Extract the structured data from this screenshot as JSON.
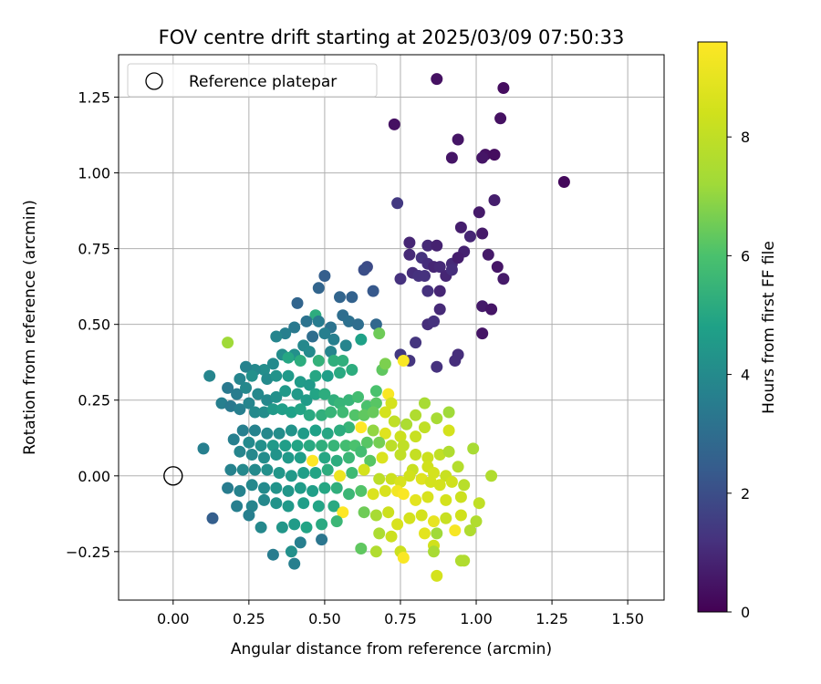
{
  "chart_data": {
    "type": "scatter",
    "title": "FOV centre drift starting at 2025/03/09 07:50:33",
    "xlabel": "Angular distance from reference (arcmin)",
    "ylabel": "Rotation from reference (arcmin)",
    "xlim": [
      -0.18,
      1.62
    ],
    "ylim": [
      -0.41,
      1.39
    ],
    "xticks": [
      0.0,
      0.25,
      0.5,
      0.75,
      1.0,
      1.25,
      1.5
    ],
    "xtick_labels": [
      "0.00",
      "0.25",
      "0.50",
      "0.75",
      "1.00",
      "1.25",
      "1.50"
    ],
    "yticks": [
      -0.25,
      0.0,
      0.25,
      0.5,
      0.75,
      1.0,
      1.25
    ],
    "ytick_labels": [
      "−0.25",
      "0.00",
      "0.25",
      "0.50",
      "0.75",
      "1.00",
      "1.25"
    ],
    "grid": true,
    "colormap": "viridis",
    "colorbar": {
      "label": "Hours from first FF file",
      "range": [
        0,
        9.6
      ],
      "ticks": [
        0,
        2,
        4,
        6,
        8
      ],
      "tick_labels": [
        "0",
        "2",
        "4",
        "6",
        "8"
      ]
    },
    "legend": {
      "position": "top-left",
      "entries": [
        {
          "label": "Reference platepar",
          "marker": "open-circle",
          "color": "#000000"
        }
      ]
    },
    "reference_point": {
      "x": 0.0,
      "y": 0.0,
      "label": "Reference platepar"
    },
    "points": [
      [
        0.87,
        1.31,
        0.4
      ],
      [
        1.09,
        1.28,
        0.3
      ],
      [
        1.08,
        1.18,
        0.4
      ],
      [
        0.73,
        1.16,
        0.4
      ],
      [
        0.94,
        1.11,
        0.5
      ],
      [
        0.92,
        1.05,
        0.5
      ],
      [
        1.03,
        1.06,
        0.4
      ],
      [
        1.02,
        1.05,
        0.5
      ],
      [
        1.06,
        1.06,
        0.3
      ],
      [
        1.29,
        0.97,
        0.2
      ],
      [
        1.06,
        0.91,
        0.7
      ],
      [
        0.74,
        0.9,
        1.4
      ],
      [
        1.01,
        0.87,
        0.6
      ],
      [
        0.95,
        0.82,
        0.7
      ],
      [
        0.98,
        0.79,
        0.9
      ],
      [
        1.02,
        0.8,
        0.6
      ],
      [
        0.78,
        0.77,
        0.9
      ],
      [
        0.84,
        0.76,
        1.0
      ],
      [
        0.87,
        0.76,
        0.8
      ],
      [
        0.96,
        0.74,
        0.8
      ],
      [
        0.82,
        0.72,
        1.2
      ],
      [
        0.78,
        0.73,
        1.0
      ],
      [
        0.84,
        0.7,
        1.1
      ],
      [
        0.86,
        0.69,
        0.9
      ],
      [
        0.88,
        0.69,
        1.0
      ],
      [
        0.92,
        0.7,
        1.0
      ],
      [
        0.94,
        0.72,
        0.7
      ],
      [
        1.04,
        0.73,
        0.6
      ],
      [
        1.07,
        0.69,
        0.5
      ],
      [
        0.9,
        0.66,
        0.9
      ],
      [
        0.92,
        0.68,
        1.1
      ],
      [
        0.79,
        0.67,
        1.1
      ],
      [
        0.81,
        0.66,
        1.2
      ],
      [
        0.83,
        0.66,
        1.2
      ],
      [
        0.75,
        0.65,
        1.2
      ],
      [
        1.09,
        0.65,
        0.6
      ],
      [
        0.64,
        0.69,
        1.9
      ],
      [
        0.63,
        0.68,
        2.0
      ],
      [
        0.84,
        0.61,
        1.2
      ],
      [
        0.88,
        0.61,
        0.9
      ],
      [
        0.66,
        0.61,
        2.3
      ],
      [
        0.5,
        0.66,
        2.5
      ],
      [
        0.48,
        0.62,
        2.7
      ],
      [
        0.55,
        0.59,
        2.7
      ],
      [
        0.59,
        0.59,
        2.6
      ],
      [
        0.41,
        0.57,
        2.7
      ],
      [
        1.02,
        0.56,
        0.6
      ],
      [
        1.05,
        0.55,
        0.5
      ],
      [
        0.88,
        0.55,
        1.0
      ],
      [
        0.84,
        0.5,
        1.1
      ],
      [
        0.86,
        0.51,
        1.2
      ],
      [
        0.8,
        0.44,
        1.3
      ],
      [
        0.75,
        0.4,
        1.4
      ],
      [
        0.78,
        0.38,
        1.3
      ],
      [
        0.94,
        0.4,
        1.1
      ],
      [
        0.93,
        0.38,
        1.1
      ],
      [
        0.87,
        0.36,
        1.2
      ],
      [
        1.02,
        0.47,
        0.5
      ],
      [
        0.67,
        0.5,
        2.8
      ],
      [
        0.56,
        0.53,
        3.0
      ],
      [
        0.58,
        0.51,
        3.1
      ],
      [
        0.61,
        0.5,
        3.0
      ],
      [
        0.52,
        0.49,
        3.2
      ],
      [
        0.47,
        0.53,
        5.2
      ],
      [
        0.48,
        0.51,
        3.5
      ],
      [
        0.44,
        0.51,
        3.2
      ],
      [
        0.4,
        0.49,
        3.4
      ],
      [
        0.37,
        0.47,
        3.6
      ],
      [
        0.46,
        0.46,
        3.0
      ],
      [
        0.5,
        0.47,
        3.6
      ],
      [
        0.53,
        0.45,
        3.6
      ],
      [
        0.62,
        0.45,
        4.8
      ],
      [
        0.34,
        0.46,
        3.8
      ],
      [
        0.43,
        0.43,
        3.9
      ],
      [
        0.57,
        0.43,
        3.8
      ],
      [
        0.68,
        0.47,
        6.5
      ],
      [
        0.45,
        0.41,
        4.0
      ],
      [
        0.52,
        0.41,
        3.8
      ],
      [
        0.4,
        0.4,
        4.2
      ],
      [
        0.36,
        0.4,
        4.1
      ],
      [
        0.33,
        0.37,
        4.0
      ],
      [
        0.3,
        0.35,
        4.1
      ],
      [
        0.27,
        0.35,
        3.9
      ],
      [
        0.24,
        0.36,
        3.7
      ],
      [
        0.22,
        0.32,
        3.8
      ],
      [
        0.26,
        0.33,
        4.2
      ],
      [
        0.31,
        0.32,
        4.0
      ],
      [
        0.34,
        0.33,
        4.3
      ],
      [
        0.38,
        0.33,
        4.5
      ],
      [
        0.42,
        0.31,
        4.6
      ],
      [
        0.45,
        0.3,
        4.5
      ],
      [
        0.47,
        0.33,
        5.0
      ],
      [
        0.51,
        0.33,
        4.7
      ],
      [
        0.55,
        0.34,
        5.1
      ],
      [
        0.56,
        0.38,
        5.3
      ],
      [
        0.53,
        0.38,
        5.3
      ],
      [
        0.48,
        0.38,
        5.4
      ],
      [
        0.42,
        0.38,
        5.2
      ],
      [
        0.38,
        0.39,
        5.0
      ],
      [
        0.59,
        0.35,
        5.2
      ],
      [
        0.69,
        0.35,
        6.3
      ],
      [
        0.7,
        0.37,
        6.7
      ],
      [
        0.76,
        0.38,
        9.5
      ],
      [
        0.67,
        0.28,
        6.0
      ],
      [
        0.71,
        0.27,
        9.5
      ],
      [
        0.72,
        0.24,
        8.5
      ],
      [
        0.18,
        0.44,
        7.2
      ],
      [
        0.12,
        0.33,
        3.8
      ],
      [
        0.16,
        0.24,
        3.6
      ],
      [
        0.19,
        0.23,
        3.4
      ],
      [
        0.22,
        0.22,
        3.6
      ],
      [
        0.25,
        0.24,
        3.8
      ],
      [
        0.28,
        0.27,
        3.9
      ],
      [
        0.31,
        0.25,
        3.9
      ],
      [
        0.34,
        0.26,
        4.2
      ],
      [
        0.37,
        0.28,
        4.5
      ],
      [
        0.41,
        0.27,
        4.5
      ],
      [
        0.44,
        0.25,
        4.6
      ],
      [
        0.47,
        0.27,
        4.9
      ],
      [
        0.5,
        0.27,
        5.2
      ],
      [
        0.53,
        0.25,
        5.3
      ],
      [
        0.55,
        0.24,
        5.5
      ],
      [
        0.58,
        0.25,
        5.5
      ],
      [
        0.61,
        0.26,
        5.8
      ],
      [
        0.64,
        0.23,
        6.0
      ],
      [
        0.67,
        0.24,
        6.2
      ],
      [
        0.21,
        0.27,
        3.5
      ],
      [
        0.18,
        0.29,
        3.4
      ],
      [
        0.24,
        0.29,
        3.9
      ],
      [
        0.27,
        0.21,
        4.0
      ],
      [
        0.3,
        0.21,
        4.1
      ],
      [
        0.33,
        0.22,
        4.5
      ],
      [
        0.36,
        0.22,
        4.7
      ],
      [
        0.39,
        0.21,
        4.8
      ],
      [
        0.42,
        0.22,
        4.9
      ],
      [
        0.45,
        0.2,
        5.1
      ],
      [
        0.49,
        0.2,
        5.3
      ],
      [
        0.52,
        0.21,
        5.5
      ],
      [
        0.56,
        0.21,
        5.7
      ],
      [
        0.6,
        0.2,
        6.1
      ],
      [
        0.63,
        0.2,
        6.3
      ],
      [
        0.66,
        0.21,
        6.4
      ],
      [
        0.7,
        0.21,
        8.5
      ],
      [
        0.73,
        0.18,
        8.0
      ],
      [
        0.77,
        0.17,
        7.5
      ],
      [
        0.8,
        0.2,
        7.6
      ],
      [
        0.83,
        0.24,
        7.4
      ],
      [
        0.87,
        0.19,
        7.4
      ],
      [
        0.91,
        0.21,
        7.2
      ],
      [
        0.91,
        0.15,
        8.5
      ],
      [
        0.83,
        0.16,
        8.0
      ],
      [
        0.8,
        0.13,
        8.2
      ],
      [
        0.75,
        0.13,
        8.3
      ],
      [
        0.7,
        0.14,
        8.8
      ],
      [
        0.66,
        0.15,
        7.0
      ],
      [
        0.62,
        0.16,
        9.6
      ],
      [
        0.58,
        0.16,
        5.5
      ],
      [
        0.55,
        0.15,
        5.2
      ],
      [
        0.51,
        0.14,
        5.0
      ],
      [
        0.47,
        0.15,
        4.8
      ],
      [
        0.43,
        0.14,
        4.6
      ],
      [
        0.39,
        0.15,
        4.3
      ],
      [
        0.35,
        0.14,
        4.1
      ],
      [
        0.31,
        0.14,
        3.9
      ],
      [
        0.27,
        0.15,
        3.7
      ],
      [
        0.23,
        0.15,
        3.6
      ],
      [
        0.2,
        0.12,
        3.6
      ],
      [
        0.25,
        0.11,
        4.0
      ],
      [
        0.29,
        0.1,
        4.2
      ],
      [
        0.33,
        0.1,
        4.5
      ],
      [
        0.37,
        0.1,
        4.7
      ],
      [
        0.41,
        0.1,
        4.9
      ],
      [
        0.45,
        0.1,
        5.1
      ],
      [
        0.49,
        0.1,
        5.3
      ],
      [
        0.53,
        0.1,
        5.5
      ],
      [
        0.57,
        0.1,
        5.8
      ],
      [
        0.6,
        0.1,
        6.0
      ],
      [
        0.64,
        0.11,
        6.2
      ],
      [
        0.68,
        0.11,
        6.6
      ],
      [
        0.72,
        0.1,
        7.9
      ],
      [
        0.76,
        0.1,
        8.0
      ],
      [
        0.8,
        0.07,
        8.1
      ],
      [
        0.84,
        0.06,
        8.3
      ],
      [
        0.88,
        0.07,
        8.0
      ],
      [
        0.91,
        0.08,
        7.6
      ],
      [
        0.99,
        0.09,
        7.4
      ],
      [
        0.1,
        0.09,
        3.6
      ],
      [
        0.22,
        0.08,
        3.8
      ],
      [
        0.26,
        0.07,
        3.9
      ],
      [
        0.3,
        0.06,
        4.1
      ],
      [
        0.34,
        0.07,
        4.3
      ],
      [
        0.38,
        0.06,
        4.5
      ],
      [
        0.42,
        0.06,
        4.7
      ],
      [
        0.46,
        0.05,
        9.7
      ],
      [
        0.5,
        0.06,
        5.0
      ],
      [
        0.54,
        0.05,
        5.2
      ],
      [
        0.58,
        0.06,
        5.6
      ],
      [
        0.62,
        0.08,
        5.8
      ],
      [
        0.65,
        0.05,
        6.2
      ],
      [
        0.69,
        0.06,
        8.7
      ],
      [
        0.75,
        0.07,
        8.0
      ],
      [
        0.79,
        0.02,
        8.2
      ],
      [
        0.84,
        0.03,
        8.4
      ],
      [
        0.86,
        0.01,
        8.5
      ],
      [
        0.9,
        0.0,
        8.2
      ],
      [
        0.94,
        0.03,
        7.7
      ],
      [
        1.05,
        0.0,
        7.6
      ],
      [
        0.19,
        0.02,
        3.7
      ],
      [
        0.23,
        0.02,
        3.9
      ],
      [
        0.27,
        0.02,
        4.0
      ],
      [
        0.31,
        0.02,
        4.2
      ],
      [
        0.35,
        0.01,
        4.4
      ],
      [
        0.39,
        0.0,
        4.5
      ],
      [
        0.43,
        0.01,
        4.7
      ],
      [
        0.47,
        0.01,
        4.9
      ],
      [
        0.51,
        0.02,
        5.2
      ],
      [
        0.55,
        0.0,
        9.2
      ],
      [
        0.59,
        0.01,
        5.7
      ],
      [
        0.63,
        0.02,
        8.5
      ],
      [
        0.68,
        -0.01,
        7.9
      ],
      [
        0.72,
        -0.01,
        8.3
      ],
      [
        0.75,
        -0.02,
        8.6
      ],
      [
        0.78,
        0.0,
        8.4
      ],
      [
        0.82,
        -0.01,
        8.8
      ],
      [
        0.85,
        -0.02,
        8.5
      ],
      [
        0.88,
        -0.03,
        8.5
      ],
      [
        0.92,
        -0.02,
        8.4
      ],
      [
        0.96,
        -0.03,
        7.8
      ],
      [
        0.18,
        -0.04,
        3.5
      ],
      [
        0.22,
        -0.05,
        3.7
      ],
      [
        0.26,
        -0.03,
        3.9
      ],
      [
        0.3,
        -0.04,
        4.0
      ],
      [
        0.34,
        -0.04,
        4.3
      ],
      [
        0.38,
        -0.05,
        4.4
      ],
      [
        0.42,
        -0.04,
        4.6
      ],
      [
        0.46,
        -0.05,
        4.7
      ],
      [
        0.5,
        -0.04,
        5.0
      ],
      [
        0.54,
        -0.04,
        5.3
      ],
      [
        0.58,
        -0.06,
        5.6
      ],
      [
        0.62,
        -0.05,
        6.1
      ],
      [
        0.66,
        -0.06,
        8.7
      ],
      [
        0.7,
        -0.05,
        8.6
      ],
      [
        0.74,
        -0.05,
        9.3
      ],
      [
        0.76,
        -0.06,
        9.5
      ],
      [
        0.8,
        -0.08,
        8.9
      ],
      [
        0.84,
        -0.07,
        8.6
      ],
      [
        0.9,
        -0.08,
        8.5
      ],
      [
        0.95,
        -0.07,
        8.3
      ],
      [
        1.01,
        -0.09,
        8.0
      ],
      [
        0.21,
        -0.1,
        3.6
      ],
      [
        0.26,
        -0.1,
        3.8
      ],
      [
        0.3,
        -0.08,
        3.9
      ],
      [
        0.34,
        -0.09,
        4.3
      ],
      [
        0.38,
        -0.1,
        4.5
      ],
      [
        0.43,
        -0.09,
        4.7
      ],
      [
        0.48,
        -0.1,
        4.9
      ],
      [
        0.53,
        -0.1,
        5.1
      ],
      [
        0.56,
        -0.12,
        9.6
      ],
      [
        0.63,
        -0.12,
        6.5
      ],
      [
        0.67,
        -0.13,
        7.4
      ],
      [
        0.71,
        -0.12,
        8.3
      ],
      [
        0.74,
        -0.16,
        8.6
      ],
      [
        0.78,
        -0.14,
        8.5
      ],
      [
        0.82,
        -0.13,
        8.5
      ],
      [
        0.86,
        -0.15,
        9.0
      ],
      [
        0.9,
        -0.14,
        8.2
      ],
      [
        0.95,
        -0.13,
        8.4
      ],
      [
        1.0,
        -0.15,
        7.6
      ],
      [
        0.25,
        -0.13,
        3.6
      ],
      [
        0.13,
        -0.14,
        2.5
      ],
      [
        0.29,
        -0.17,
        3.9
      ],
      [
        0.36,
        -0.17,
        4.4
      ],
      [
        0.4,
        -0.16,
        4.6
      ],
      [
        0.44,
        -0.17,
        4.9
      ],
      [
        0.49,
        -0.16,
        5.1
      ],
      [
        0.54,
        -0.15,
        5.6
      ],
      [
        0.68,
        -0.19,
        7.5
      ],
      [
        0.72,
        -0.2,
        8.3
      ],
      [
        0.83,
        -0.19,
        8.9
      ],
      [
        0.87,
        -0.19,
        7.2
      ],
      [
        0.93,
        -0.18,
        9.4
      ],
      [
        0.98,
        -0.18,
        7.6
      ],
      [
        0.42,
        -0.22,
        3.6
      ],
      [
        0.49,
        -0.21,
        3.3
      ],
      [
        0.62,
        -0.24,
        6.3
      ],
      [
        0.67,
        -0.25,
        7.6
      ],
      [
        0.75,
        -0.25,
        8.3
      ],
      [
        0.76,
        -0.27,
        9.5
      ],
      [
        0.86,
        -0.23,
        8.4
      ],
      [
        0.86,
        -0.25,
        7.4
      ],
      [
        0.33,
        -0.26,
        3.5
      ],
      [
        0.39,
        -0.25,
        4.2
      ],
      [
        0.4,
        -0.29,
        3.6
      ],
      [
        0.95,
        -0.28,
        7.6
      ],
      [
        0.96,
        -0.28,
        7.6
      ],
      [
        0.87,
        -0.33,
        8.5
      ]
    ]
  }
}
